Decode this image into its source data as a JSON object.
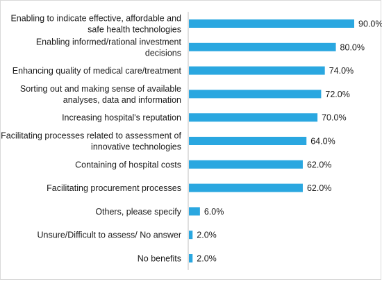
{
  "chart_data": {
    "type": "bar",
    "orientation": "horizontal",
    "categories": [
      [
        "Enabling to indicate effective, affordable and",
        "safe health technologies"
      ],
      [
        "Enabling informed/rational investment",
        "decisions"
      ],
      [
        "Enhancing quality of medical care/treatment"
      ],
      [
        "Sorting out and making sense of available",
        "analyses, data and information"
      ],
      [
        "Increasing hospital's reputation"
      ],
      [
        "Facilitating processes related to assessment of",
        "innovative technologies"
      ],
      [
        "Containing of hospital costs"
      ],
      [
        "Facilitating procurement processes"
      ],
      [
        "Others, please specify"
      ],
      [
        "Unsure/Difficult to assess/ No answer"
      ],
      [
        "No benefits"
      ]
    ],
    "values": [
      90.0,
      80.0,
      74.0,
      72.0,
      70.0,
      64.0,
      62.0,
      62.0,
      6.0,
      2.0,
      2.0
    ],
    "data_labels": [
      "90.0%",
      "80.0%",
      "74.0%",
      "72.0%",
      "70.0%",
      "64.0%",
      "62.0%",
      "62.0%",
      "6.0%",
      "2.0%",
      "2.0%"
    ],
    "xlim": [
      0,
      90
    ],
    "bar_color": "#2aa7e0",
    "axis_color": "#bfbfbf",
    "grid": false,
    "legend": "none"
  }
}
